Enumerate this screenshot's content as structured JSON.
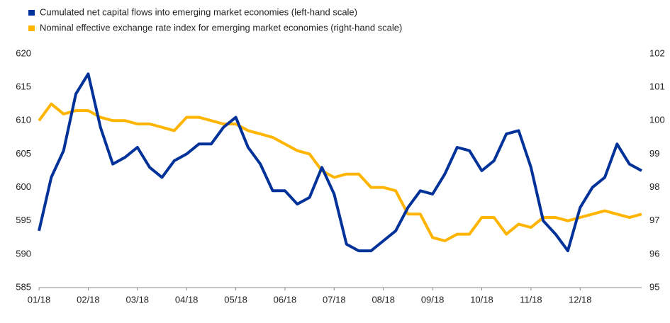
{
  "chart_data": {
    "type": "line",
    "categories": [
      "01/18",
      null,
      null,
      null,
      "02/18",
      null,
      null,
      null,
      "03/18",
      null,
      null,
      null,
      "04/18",
      null,
      null,
      null,
      "05/18",
      null,
      null,
      null,
      "06/18",
      null,
      null,
      null,
      "07/18",
      null,
      null,
      null,
      "08/18",
      null,
      null,
      null,
      "09/18",
      null,
      null,
      null,
      "10/18",
      null,
      null,
      null,
      "11/18",
      null,
      null,
      null,
      "12/18",
      null,
      null,
      null,
      null,
      null
    ],
    "series": [
      {
        "name": "Cumulated net capital flows into emerging market economies (left-hand scale)",
        "color": "#003299",
        "axis": "y",
        "values": [
          593.5,
          601.5,
          605.5,
          614,
          617,
          609,
          603.5,
          604.5,
          606,
          603,
          601.5,
          604,
          605,
          606.5,
          606.5,
          609,
          610.5,
          606,
          603.5,
          599.5,
          599.5,
          597.5,
          598.5,
          603,
          599,
          591.5,
          590.5,
          590.5,
          592,
          593.5,
          597,
          599.5,
          599,
          602,
          606,
          605.5,
          602.5,
          604,
          608,
          608.5,
          603,
          595,
          593,
          590.5,
          597,
          600,
          601.5,
          606.5,
          603.5,
          602.5
        ]
      },
      {
        "name": "Nominal effective exchange rate index for emerging market economies (right-hand scale)",
        "color": "#ffb400",
        "axis": "y2",
        "values": [
          100,
          100.5,
          100.2,
          100.3,
          100.3,
          100.1,
          100,
          100,
          99.9,
          99.9,
          99.8,
          99.7,
          100.1,
          100.1,
          100,
          99.9,
          99.9,
          99.7,
          99.6,
          99.5,
          99.3,
          99.1,
          99,
          98.5,
          98.3,
          98.4,
          98.4,
          98,
          98,
          97.9,
          97.2,
          97.2,
          96.5,
          96.4,
          96.6,
          96.6,
          97.1,
          97.1,
          96.6,
          96.9,
          96.8,
          97.1,
          97.1,
          97,
          97.1,
          97.2,
          97.3,
          97.2,
          97.1,
          97.2
        ]
      }
    ],
    "ylim": [
      585,
      620
    ],
    "yticks": [
      585,
      590,
      595,
      600,
      605,
      610,
      615,
      620
    ],
    "y2lim": [
      95,
      102
    ],
    "y2ticks": [
      95,
      96,
      97,
      98,
      99,
      100,
      101,
      102
    ],
    "legend": "top-left"
  }
}
